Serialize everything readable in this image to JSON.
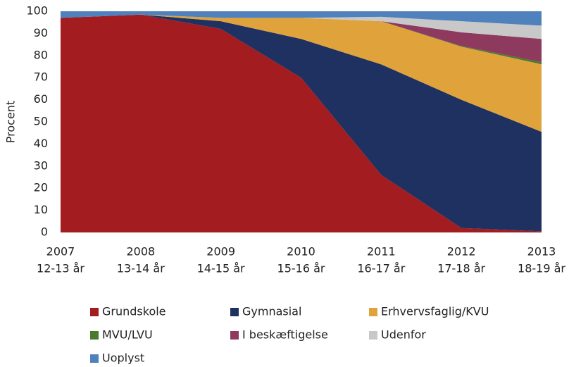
{
  "chart_data": {
    "type": "stacked_area",
    "y_label": "Procent",
    "categories": [
      [
        "2007",
        "12-13 år"
      ],
      [
        "2008",
        "13-14 år"
      ],
      [
        "2009",
        "14-15 år"
      ],
      [
        "2010",
        "15-16 år"
      ],
      [
        "2011",
        "16-17 år"
      ],
      [
        "2012",
        "17-18 år"
      ],
      [
        "2013",
        "18-19 år"
      ]
    ],
    "series": [
      {
        "name": "Grundskole",
        "color": "#a21c20",
        "values": [
          97,
          98.5,
          92,
          70,
          26,
          2,
          0.5
        ]
      },
      {
        "name": "Gymnasial",
        "color": "#1f3160",
        "values": [
          0,
          0,
          3.5,
          17.5,
          50,
          58,
          45
        ]
      },
      {
        "name": "Erhvervsfaglig/KVU",
        "color": "#e0a33c",
        "values": [
          0,
          0,
          1.5,
          9.5,
          19.5,
          24,
          30.5
        ]
      },
      {
        "name": "MVU/LVU",
        "color": "#4a7a2e",
        "values": [
          0,
          0,
          0,
          0,
          0,
          0.3,
          1
        ]
      },
      {
        "name": "I beskæftigelse",
        "color": "#8e3a5e",
        "values": [
          0,
          0,
          0,
          0,
          0,
          6.2,
          10.5
        ]
      },
      {
        "name": "Udenfor",
        "color": "#c8c8c8",
        "values": [
          0,
          0,
          0,
          0,
          2,
          5,
          6
        ]
      },
      {
        "name": "Uoplyst",
        "color": "#4f81bd",
        "values": [
          3,
          1.5,
          3,
          3,
          2.5,
          4.5,
          6.5
        ]
      }
    ],
    "ylim": [
      0,
      100
    ],
    "yticks": [
      0,
      10,
      20,
      30,
      40,
      50,
      60,
      70,
      80,
      90,
      100
    ],
    "grid": false,
    "legend": "bottom"
  }
}
